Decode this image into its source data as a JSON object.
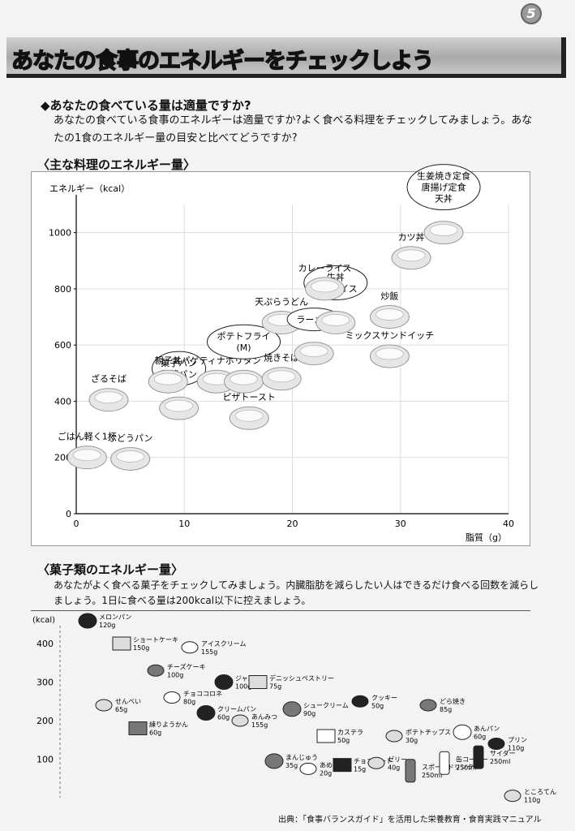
{
  "page_number": "5",
  "banner_title": "あなたの食事のエネルギーをチェックしよう",
  "question": "◆あなたの食べている量は適量ですか?",
  "intro_text": "あなたの食べている食事のエネルギーは適量ですか?よく食べる料理をチェックしてみましょう。あなたの1食のエネルギー量の目安と比べてどうですか?",
  "chart_section_title": "〈主な料理のエネルギー量〉",
  "chart_data": {
    "type": "scatter",
    "ylabel": "エネルギー（kcal）",
    "xlabel": "脂質（g）",
    "xlim": [
      0,
      40
    ],
    "ylim": [
      0,
      1100
    ],
    "xticks": [
      "0",
      "10",
      "20",
      "30",
      "40"
    ],
    "yticks": [
      "0",
      "200",
      "400",
      "600",
      "800",
      "1000"
    ],
    "grid": true,
    "points": [
      {
        "label": "ごはん軽く1杯",
        "x": 1,
        "y": 200,
        "boxed": false
      },
      {
        "label": "ぶどうパン",
        "x": 5,
        "y": 195,
        "boxed": false
      },
      {
        "label": "ざるそば",
        "x": 3,
        "y": 405,
        "boxed": false
      },
      {
        "label": "菓子パン\n惣菜パン",
        "x": 9.5,
        "y": 375,
        "boxed": true
      },
      {
        "label": "親子丼",
        "x": 8.5,
        "y": 470,
        "boxed": false
      },
      {
        "label": "スパゲティナポリタン",
        "x": 13,
        "y": 470,
        "boxed": false
      },
      {
        "label": "ポテトフライ\n(M)",
        "x": 15.5,
        "y": 470,
        "boxed": true
      },
      {
        "label": "ピザトースト",
        "x": 16,
        "y": 340,
        "boxed": false
      },
      {
        "label": "天ぷらうどん",
        "x": 19,
        "y": 680,
        "boxed": false
      },
      {
        "label": "焼きそば",
        "x": 19,
        "y": 480,
        "boxed": false
      },
      {
        "label": "ラーメン",
        "x": 22,
        "y": 570,
        "boxed": true
      },
      {
        "label": "牛丼\nオムライス",
        "x": 24,
        "y": 680,
        "boxed": true
      },
      {
        "label": "カレーライス",
        "x": 23,
        "y": 800,
        "boxed": false
      },
      {
        "label": "炒飯",
        "x": 29,
        "y": 700,
        "boxed": false
      },
      {
        "label": "ミックスサンドイッチ",
        "x": 29,
        "y": 560,
        "boxed": false
      },
      {
        "label": "カツ丼",
        "x": 31,
        "y": 910,
        "boxed": false
      },
      {
        "label": "生姜焼き定食\n唐揚げ定食\n天丼",
        "x": 34,
        "y": 1000,
        "boxed": true
      }
    ]
  },
  "snack_section_title": "〈菓子類のエネルギー量〉",
  "snack_intro": "あなたがよく食べる菓子をチェックしてみましょう。内臓脂肪を減らしたい人はできるだけ食べる回数を減らしましょう。1日に食べる量は200kcal以下に控えましょう。",
  "snack_chart": {
    "ylabel": "(kcal)",
    "yticks": [
      "100",
      "200",
      "300",
      "400"
    ],
    "items": [
      {
        "name": "メロンパン",
        "amount": "120g",
        "kcal": 460,
        "shape": "dome"
      },
      {
        "name": "ショートケーキ",
        "amount": "150g",
        "kcal": 400,
        "shape": "cake"
      },
      {
        "name": "チーズケーキ",
        "amount": "100g",
        "kcal": 330,
        "shape": "wedge"
      },
      {
        "name": "アイスクリーム",
        "amount": "155g",
        "kcal": 390,
        "shape": "cup"
      },
      {
        "name": "ジャムパン",
        "amount": "100g",
        "kcal": 300,
        "shape": "bun"
      },
      {
        "name": "デニッシュペストリー",
        "amount": "75g",
        "kcal": 300,
        "shape": "square"
      },
      {
        "name": "シュークリーム",
        "amount": "90g",
        "kcal": 230,
        "shape": "ball"
      },
      {
        "name": "カステラ",
        "amount": "50g",
        "kcal": 160,
        "shape": "block"
      },
      {
        "name": "クッキー",
        "amount": "50g",
        "kcal": 250,
        "shape": "cookie"
      },
      {
        "name": "ポテトチップス",
        "amount": "30g",
        "kcal": 160,
        "shape": "bag"
      },
      {
        "name": "どら焼き",
        "amount": "85g",
        "kcal": 240,
        "shape": "dorayaki"
      },
      {
        "name": "あんパン",
        "amount": "60g",
        "kcal": 170,
        "shape": "bun"
      },
      {
        "name": "プリン",
        "amount": "110g",
        "kcal": 140,
        "shape": "pudding"
      },
      {
        "name": "せんべい",
        "amount": "65g",
        "kcal": 240,
        "shape": "cracker"
      },
      {
        "name": "練りようかん",
        "amount": "60g",
        "kcal": 180,
        "shape": "yokan"
      },
      {
        "name": "チョココロネ",
        "amount": "80g",
        "kcal": 260,
        "shape": "cornet"
      },
      {
        "name": "クリームパン",
        "amount": "60g",
        "kcal": 220,
        "shape": "bun"
      },
      {
        "name": "あんみつ",
        "amount": "155g",
        "kcal": 200,
        "shape": "bowl"
      },
      {
        "name": "まんじゅう",
        "amount": "35g",
        "kcal": 95,
        "shape": "ball"
      },
      {
        "name": "あめ",
        "amount": "20g",
        "kcal": 75,
        "shape": "candy"
      },
      {
        "name": "チョコレート",
        "amount": "15g",
        "kcal": 85,
        "shape": "choco"
      },
      {
        "name": "ゼリー",
        "amount": "40g",
        "kcal": 90,
        "shape": "jelly"
      },
      {
        "name": "スポーツドリンク",
        "amount": "250ml",
        "kcal": 70,
        "shape": "can"
      },
      {
        "name": "缶コーヒー",
        "amount": "250ml",
        "kcal": 90,
        "shape": "can"
      },
      {
        "name": "サイダー",
        "amount": "250ml",
        "kcal": 105,
        "shape": "bottle"
      },
      {
        "name": "ところてん",
        "amount": "110g",
        "kcal": 5,
        "shape": "noodle"
      }
    ]
  },
  "source_text": "出典：「食事バランスガイド」を活用した栄養教育・食育実践マニュアル"
}
